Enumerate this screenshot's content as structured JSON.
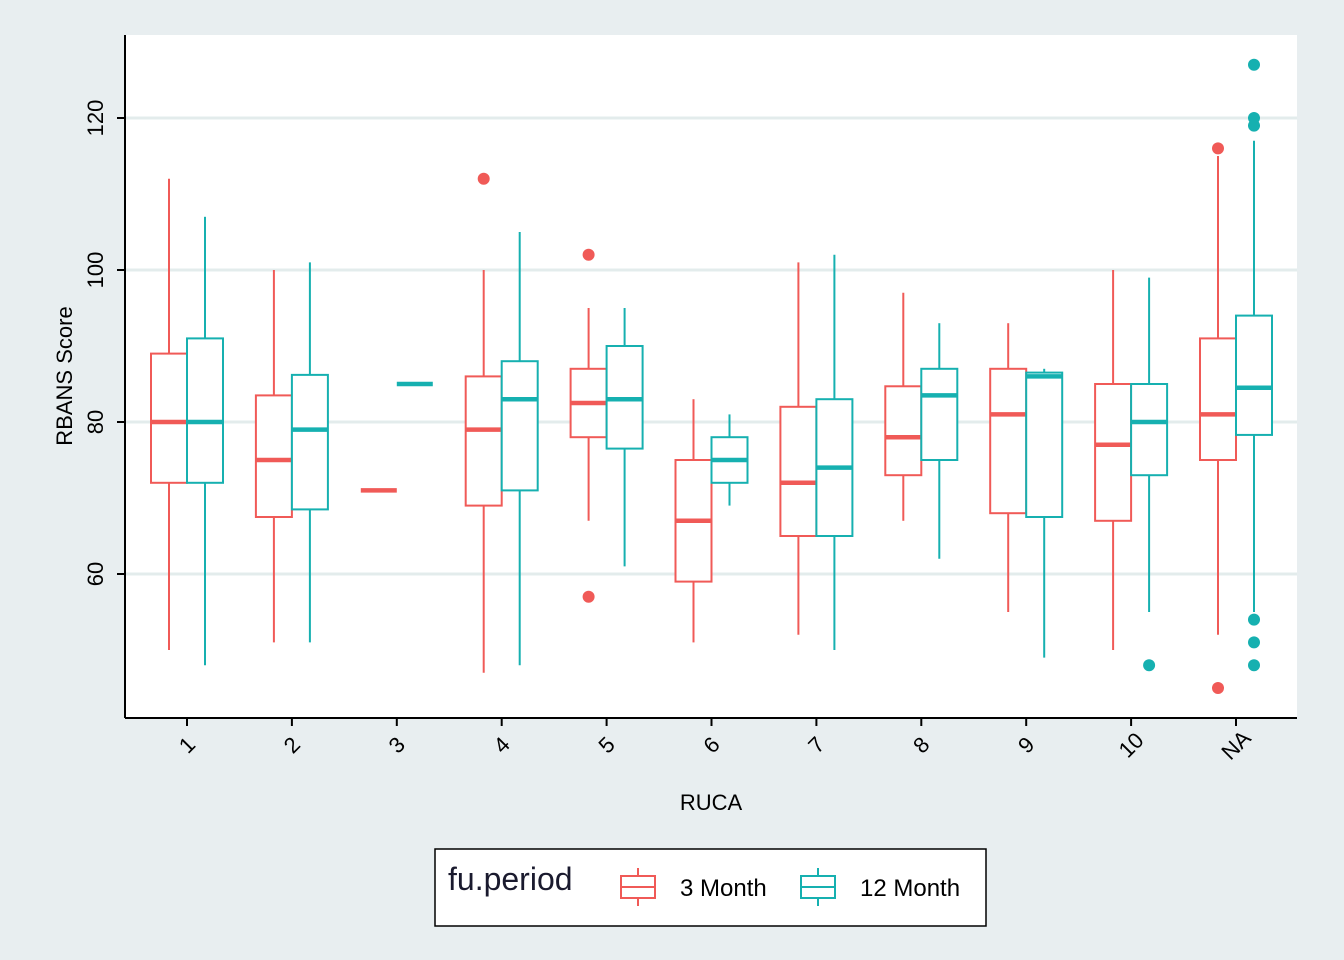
{
  "chart_data": {
    "type": "boxplot",
    "xlabel": "RUCA",
    "ylabel": "RBANS Score",
    "categories": [
      "1",
      "2",
      "3",
      "4",
      "5",
      "6",
      "7",
      "8",
      "9",
      "10",
      "NA"
    ],
    "y_ticks": [
      60,
      80,
      100,
      120
    ],
    "ylim": [
      42,
      130
    ],
    "grid": true,
    "legend": {
      "title": "fu.period",
      "position": "bottom"
    },
    "series": [
      {
        "name": "3 Month",
        "color": "#f05a57",
        "boxes": [
          {
            "category": "1",
            "min": 50,
            "q1": 72,
            "median": 80,
            "q3": 89,
            "max": 112,
            "outliers": []
          },
          {
            "category": "2",
            "min": 51,
            "q1": 67.5,
            "median": 75,
            "q3": 83.5,
            "max": 100,
            "outliers": []
          },
          {
            "category": "3",
            "min": 71,
            "q1": 71,
            "median": 71,
            "q3": 71,
            "max": 71,
            "outliers": []
          },
          {
            "category": "4",
            "min": 47,
            "q1": 69,
            "median": 79,
            "q3": 86,
            "max": 100,
            "outliers": [
              112
            ]
          },
          {
            "category": "5",
            "min": 67,
            "q1": 78,
            "median": 82.5,
            "q3": 87,
            "max": 95,
            "outliers": [
              102,
              57
            ]
          },
          {
            "category": "6",
            "min": 51,
            "q1": 59,
            "median": 67,
            "q3": 75,
            "max": 83,
            "outliers": []
          },
          {
            "category": "7",
            "min": 52,
            "q1": 65,
            "median": 72,
            "q3": 82,
            "max": 101,
            "outliers": []
          },
          {
            "category": "8",
            "min": 67,
            "q1": 73,
            "median": 78,
            "q3": 84.7,
            "max": 97,
            "outliers": []
          },
          {
            "category": "9",
            "min": 55,
            "q1": 68,
            "median": 81,
            "q3": 87,
            "max": 93,
            "outliers": []
          },
          {
            "category": "10",
            "min": 50,
            "q1": 67,
            "median": 77,
            "q3": 85,
            "max": 100,
            "outliers": []
          },
          {
            "category": "NA",
            "min": 52,
            "q1": 75,
            "median": 81,
            "q3": 91,
            "max": 115,
            "outliers": [
              116,
              45
            ]
          }
        ]
      },
      {
        "name": "12 Month",
        "color": "#16b0b0",
        "boxes": [
          {
            "category": "1",
            "min": 48,
            "q1": 72,
            "median": 80,
            "q3": 91,
            "max": 107,
            "outliers": []
          },
          {
            "category": "2",
            "min": 51,
            "q1": 68.5,
            "median": 79,
            "q3": 86.2,
            "max": 101,
            "outliers": []
          },
          {
            "category": "3",
            "min": 85,
            "q1": 85,
            "median": 85,
            "q3": 85,
            "max": 85,
            "outliers": []
          },
          {
            "category": "4",
            "min": 48,
            "q1": 71,
            "median": 83,
            "q3": 88,
            "max": 105,
            "outliers": []
          },
          {
            "category": "5",
            "min": 61,
            "q1": 76.5,
            "median": 83,
            "q3": 90,
            "max": 95,
            "outliers": []
          },
          {
            "category": "6",
            "min": 69,
            "q1": 72,
            "median": 75,
            "q3": 78,
            "max": 81,
            "outliers": []
          },
          {
            "category": "7",
            "min": 50,
            "q1": 65,
            "median": 74,
            "q3": 83,
            "max": 102,
            "outliers": []
          },
          {
            "category": "8",
            "min": 62,
            "q1": 75,
            "median": 83.5,
            "q3": 87,
            "max": 93,
            "outliers": []
          },
          {
            "category": "9",
            "min": 49,
            "q1": 67.5,
            "median": 86,
            "q3": 86.5,
            "max": 87,
            "outliers": []
          },
          {
            "category": "10",
            "min": 55,
            "q1": 73,
            "median": 80,
            "q3": 85,
            "max": 99,
            "outliers": [
              48
            ]
          },
          {
            "category": "NA",
            "min": 55,
            "q1": 78.3,
            "median": 84.5,
            "q3": 94,
            "max": 117,
            "outliers": [
              127,
              120,
              119,
              54,
              51,
              48
            ]
          }
        ]
      }
    ]
  }
}
